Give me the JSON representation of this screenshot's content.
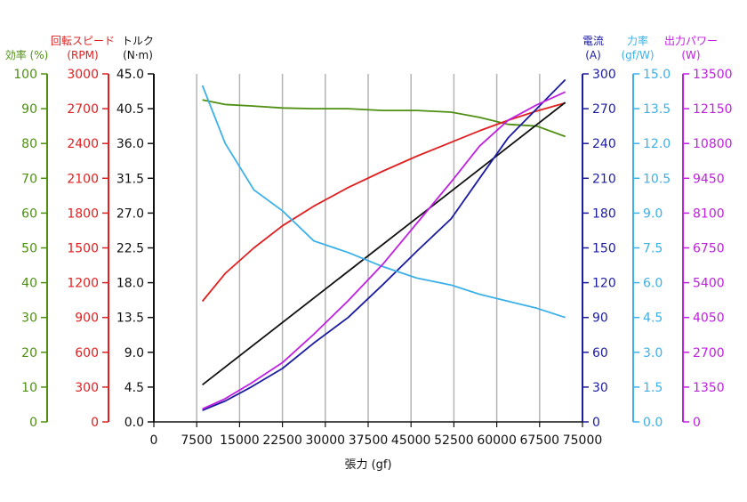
{
  "chart_data": {
    "type": "line",
    "xlabel": "張力 (gf)",
    "xlim": [
      0,
      75000
    ],
    "xticks": [
      0,
      7500,
      15000,
      22500,
      30000,
      37500,
      45000,
      52500,
      60000,
      67500,
      75000
    ],
    "grid": true,
    "axes": [
      {
        "id": "eff",
        "side": "left",
        "title": [
          "効率 (%)"
        ],
        "color": "#4e8f12",
        "min": 0,
        "max": 100,
        "ticks": [
          0,
          10,
          20,
          30,
          40,
          50,
          60,
          70,
          80,
          90,
          100
        ]
      },
      {
        "id": "rpm",
        "side": "left",
        "title": [
          "回転スピード",
          "(RPM)"
        ],
        "color": "#e02020",
        "min": 0,
        "max": 3000,
        "ticks": [
          0,
          300,
          600,
          900,
          1200,
          1500,
          1800,
          2100,
          2400,
          2700,
          3000
        ]
      },
      {
        "id": "torque",
        "side": "left",
        "title": [
          "トルク",
          "(N·m)"
        ],
        "color": "#111111",
        "min": 0,
        "max": 45,
        "ticks": [
          "0.0",
          "4.5",
          "9.0",
          "13.5",
          "18.0",
          "22.5",
          "27.0",
          "31.5",
          "36.0",
          "40.5",
          "45.0"
        ]
      },
      {
        "id": "current",
        "side": "right",
        "title": [
          "電流",
          "(A)"
        ],
        "color": "#1c1ca0",
        "min": 0,
        "max": 300,
        "ticks": [
          0,
          30,
          60,
          90,
          120,
          150,
          180,
          210,
          240,
          270,
          300
        ]
      },
      {
        "id": "force",
        "side": "right",
        "title": [
          "力率",
          "(gf/W)"
        ],
        "color": "#3cb0e8",
        "min": 0,
        "max": 15,
        "ticks": [
          "0.0",
          "1.5",
          "3.0",
          "4.5",
          "6.0",
          "7.5",
          "9.0",
          "10.5",
          "12.0",
          "13.5",
          "15.0"
        ]
      },
      {
        "id": "power",
        "side": "right",
        "title": [
          "出力パワー",
          "(W)"
        ],
        "color": "#c020e0",
        "min": 0,
        "max": 13500,
        "ticks": [
          0,
          1350,
          2700,
          4050,
          5400,
          6750,
          8100,
          9450,
          10800,
          12150,
          13500
        ]
      }
    ],
    "series": [
      {
        "axis": "eff",
        "color": "#4e8f12",
        "x": [
          8500,
          12500,
          17000,
          22500,
          28000,
          34000,
          40000,
          46000,
          52000,
          57000,
          62000,
          67000,
          72000
        ],
        "y": [
          92.5,
          91.2,
          90.8,
          90.2,
          90,
          90,
          89.5,
          89.5,
          89,
          87.5,
          85.5,
          85,
          82
        ]
      },
      {
        "axis": "rpm",
        "color": "#e02020",
        "x": [
          8500,
          12500,
          17500,
          22500,
          28000,
          34000,
          40000,
          46000,
          52000,
          57000,
          62000,
          67000,
          72000
        ],
        "y": [
          1040,
          1280,
          1500,
          1690,
          1860,
          2020,
          2160,
          2290,
          2410,
          2510,
          2600,
          2680,
          2750
        ]
      },
      {
        "axis": "torque",
        "color": "#111111",
        "x": [
          8500,
          72000
        ],
        "y": [
          4.8,
          41.3
        ]
      },
      {
        "axis": "current",
        "color": "#1c1ca0",
        "x": [
          8500,
          12500,
          17000,
          22500,
          28000,
          34000,
          40000,
          46000,
          52000,
          57000,
          62000,
          67000,
          72000
        ],
        "y": [
          10,
          18,
          30,
          46,
          68,
          90,
          118,
          147,
          175,
          210,
          245,
          270,
          295
        ]
      },
      {
        "axis": "force",
        "color": "#3cb0e8",
        "x": [
          8500,
          12500,
          17500,
          22500,
          28000,
          34000,
          40000,
          46000,
          52000,
          57000,
          62000,
          67000,
          72000
        ],
        "y": [
          14.5,
          12.0,
          10.0,
          9.1,
          7.8,
          7.3,
          6.7,
          6.2,
          5.9,
          5.5,
          5.2,
          4.9,
          4.5
        ]
      },
      {
        "axis": "power",
        "color": "#c020e0",
        "x": [
          8500,
          12500,
          17000,
          22500,
          28000,
          34000,
          40000,
          46000,
          52000,
          57000,
          62000,
          67000,
          72000
        ],
        "y": [
          500,
          900,
          1500,
          2300,
          3400,
          4700,
          6100,
          7700,
          9300,
          10700,
          11700,
          12300,
          12800
        ]
      }
    ]
  }
}
